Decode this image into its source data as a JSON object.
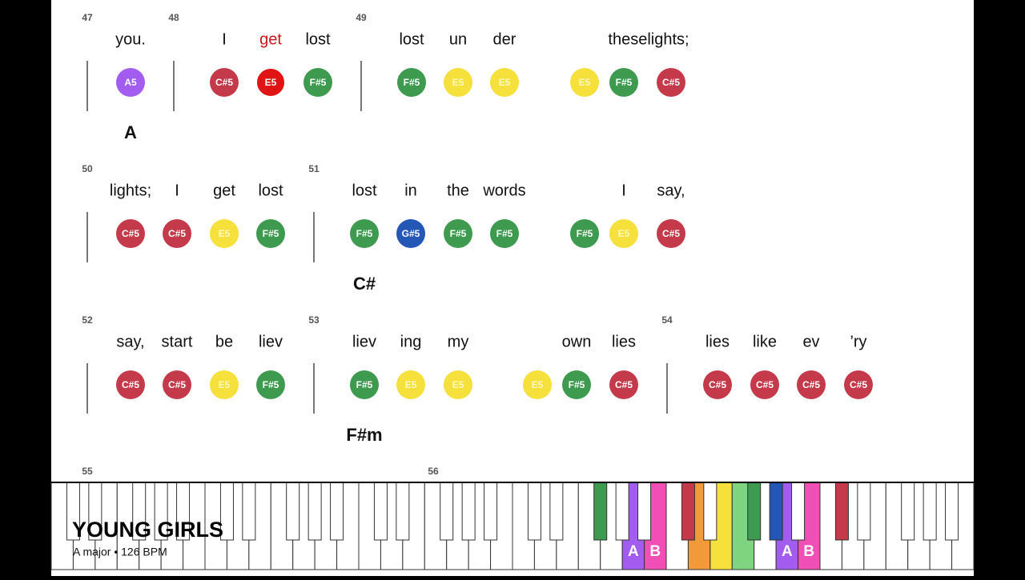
{
  "systems": [
    {
      "chord": "A",
      "measures": [
        {
          "number": "47",
          "lyrics": [
            "you."
          ],
          "notes": [
            "A5"
          ]
        },
        {
          "number": "48",
          "lyrics": [
            "I",
            {
              "text": "get",
              "active": true
            },
            "lost"
          ],
          "notes": [
            "C#5",
            {
              "name": "E5",
              "active": true
            },
            "F#5"
          ]
        },
        {
          "number": "49",
          "lyrics": [
            "lost",
            "un",
            "der",
            "theselights;"
          ],
          "notes": [
            "F#5",
            "E5",
            "E5",
            "E5",
            "F#5",
            "C#5"
          ]
        }
      ]
    },
    {
      "chord": "C#",
      "measures": [
        {
          "number": "50",
          "lyrics": [
            "lights;",
            "I",
            "get",
            "lost"
          ],
          "notes": [
            "C#5",
            "C#5",
            "E5",
            "F#5"
          ]
        },
        {
          "number": "51",
          "lyrics": [
            "lost",
            "in",
            "the",
            "words",
            "I",
            "say,"
          ],
          "notes": [
            "F#5",
            "G#5",
            "F#5",
            "F#5",
            "F#5",
            "E5",
            "C#5"
          ]
        }
      ]
    },
    {
      "chord": "F#m",
      "measures": [
        {
          "number": "52",
          "lyrics": [
            "say,",
            "start",
            "be",
            "liev"
          ],
          "notes": [
            "C#5",
            "C#5",
            "E5",
            "F#5"
          ]
        },
        {
          "number": "53",
          "lyrics": [
            "liev",
            "ing",
            "my",
            "own",
            "lies"
          ],
          "notes": [
            "F#5",
            "E5",
            "E5",
            "E5",
            "F#5",
            "C#5"
          ]
        },
        {
          "number": "54",
          "lyrics": [
            "lies",
            "like",
            "ev",
            "’ry"
          ],
          "notes": [
            "C#5",
            "C#5",
            "C#5",
            "C#5"
          ]
        }
      ]
    },
    {
      "measures": [
        {
          "number": "55"
        },
        {
          "number": "56"
        }
      ]
    }
  ],
  "note_colors": {
    "A5": "#a35cf0",
    "C#5": "#c43a4b",
    "E5": "#f6e03c",
    "F#5": "#3d9a4f",
    "G#5": "#2456b5"
  },
  "active_color": "#e01414",
  "piano": {
    "key_labels": [
      "A",
      "B",
      "A",
      "B"
    ]
  },
  "song": {
    "title": "YOUNG GIRLS",
    "subtitle": "A major • 126 BPM"
  }
}
